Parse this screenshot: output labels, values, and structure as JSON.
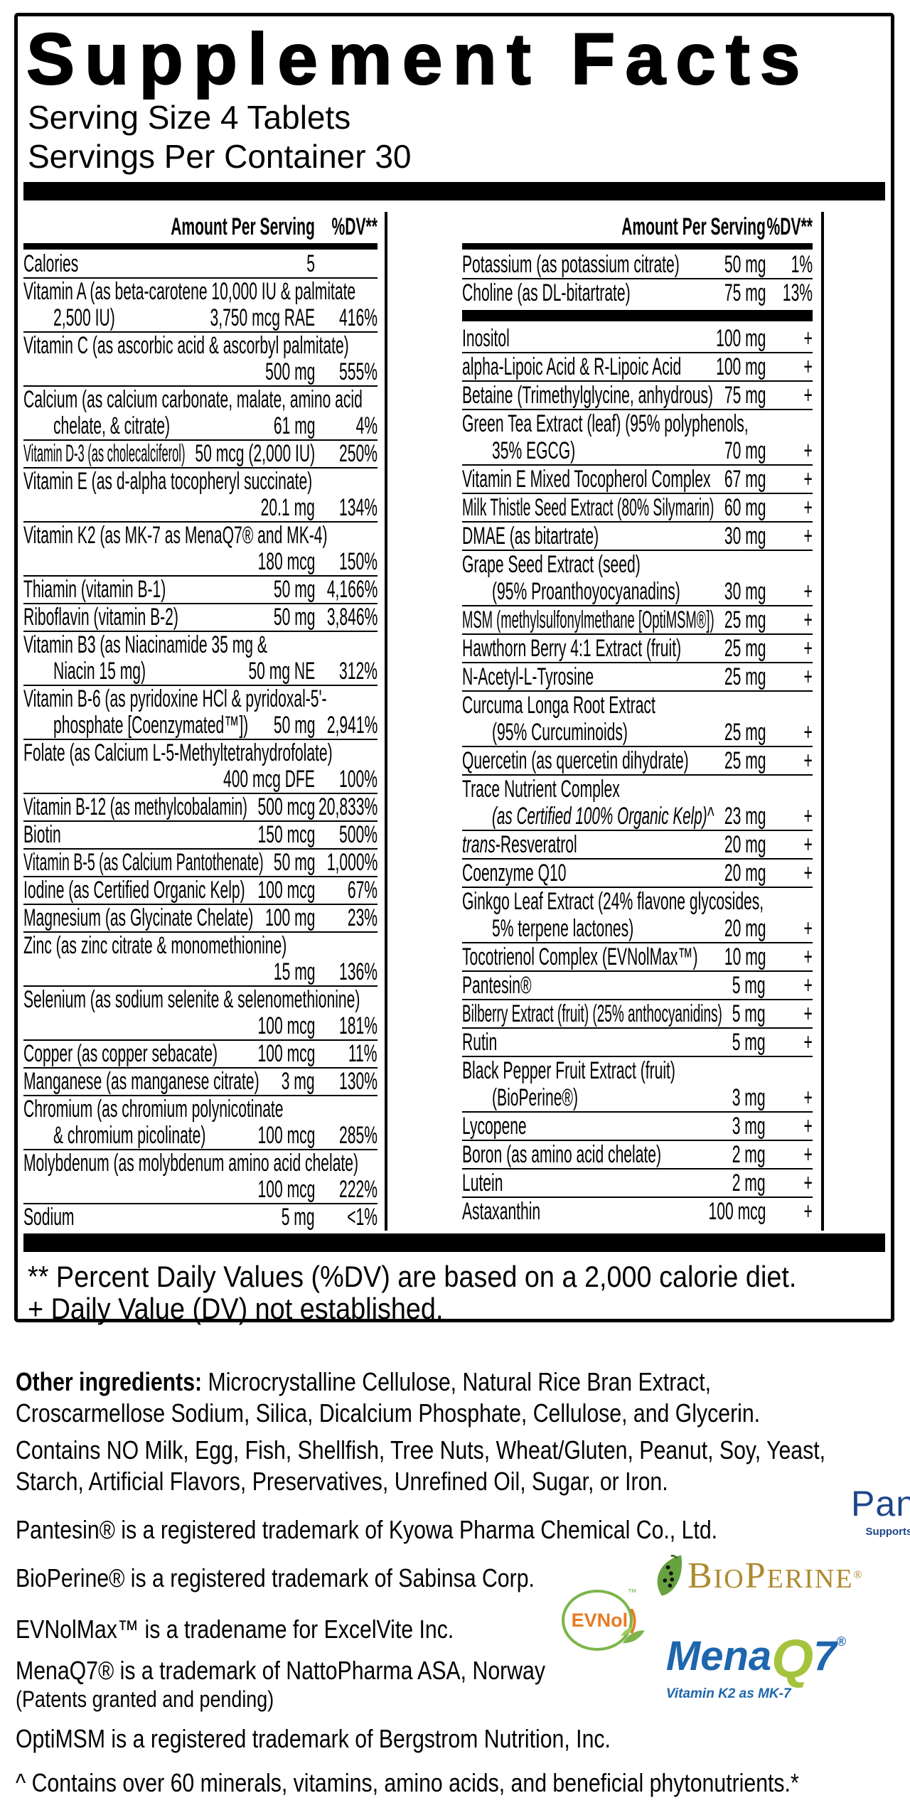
{
  "header": {
    "title": "Supplement Facts",
    "serving_size": "Serving Size 4 Tablets",
    "servings_per_container": "Servings Per Container 30"
  },
  "columns_header": {
    "amount_label": "Amount Per Serving",
    "dv_label": "%DV**"
  },
  "left_column_rows": [
    {
      "l": [
        [
          "Calories"
        ]
      ],
      "a": "5",
      "d": ""
    },
    {
      "l": [
        [
          "Vitamin A (as beta-carotene 10,000 IU & palmitate"
        ],
        [
          "2,500 IU)"
        ]
      ],
      "a": "3,750 mcg RAE",
      "d": "416%"
    },
    {
      "l": [
        [
          "Vitamin C (as ascorbic acid & ascorbyl palmitate)"
        ],
        [
          ""
        ]
      ],
      "a": "500 mg",
      "d": "555%"
    },
    {
      "l": [
        [
          "Calcium (as calcium carbonate, malate, amino acid"
        ],
        [
          "chelate, & citrate)"
        ]
      ],
      "a": "61 mg",
      "d": "4%"
    },
    {
      "l": [
        [
          "Vitamin D-3 (as cholecalciferol)"
        ]
      ],
      "a": "50 mcg (2,000 IU)",
      "d": "250%"
    },
    {
      "l": [
        [
          "Vitamin E (as d-alpha tocopheryl succinate)"
        ],
        [
          ""
        ]
      ],
      "a": "20.1 mg",
      "d": "134%"
    },
    {
      "l": [
        [
          "Vitamin K2 (as MK-7 as MenaQ7® and MK-4)"
        ],
        [
          ""
        ]
      ],
      "a": "180 mcg",
      "d": "150%"
    },
    {
      "l": [
        [
          "Thiamin (vitamin B-1)"
        ]
      ],
      "a": "50 mg",
      "d": "4,166%"
    },
    {
      "l": [
        [
          "Riboflavin (vitamin B-2)"
        ]
      ],
      "a": "50 mg",
      "d": "3,846%"
    },
    {
      "l": [
        [
          "Vitamin B3 (as Niacinamide 35 mg &"
        ],
        [
          "Niacin 15 mg)"
        ]
      ],
      "a": "50 mg NE",
      "d": "312%"
    },
    {
      "l": [
        [
          "Vitamin B-6 (as pyridoxine HCl & pyridoxal-5'-"
        ],
        [
          "phosphate [Coenzymated™])"
        ]
      ],
      "a": "50 mg",
      "d": "2,941%"
    },
    {
      "l": [
        [
          "Folate (as Calcium L-5-Methyltetrahydrofolate)"
        ],
        [
          ""
        ]
      ],
      "a": "400 mcg DFE",
      "d": "100%"
    },
    {
      "l": [
        [
          "Vitamin B-12 (as methylcobalamin)"
        ]
      ],
      "a": "500 mcg",
      "d": "20,833%"
    },
    {
      "l": [
        [
          "Biotin"
        ]
      ],
      "a": "150 mcg",
      "d": "500%"
    },
    {
      "l": [
        [
          "Vitamin B-5 (as Calcium Pantothenate)"
        ]
      ],
      "a": "50 mg",
      "d": "1,000%"
    },
    {
      "l": [
        [
          "Iodine (as Certified Organic Kelp)"
        ]
      ],
      "a": "100 mcg",
      "d": "67%"
    },
    {
      "l": [
        [
          "Magnesium (as Glycinate Chelate)"
        ]
      ],
      "a": "100 mg",
      "d": "23%"
    },
    {
      "l": [
        [
          "Zinc (as zinc citrate & monomethionine)"
        ],
        [
          ""
        ]
      ],
      "a": "15 mg",
      "d": "136%"
    },
    {
      "l": [
        [
          "Selenium (as sodium selenite & selenomethionine)"
        ],
        [
          ""
        ]
      ],
      "a": "100 mcg",
      "d": "181%"
    },
    {
      "l": [
        [
          "Copper (as copper sebacate)"
        ]
      ],
      "a": "100 mcg",
      "d": "11%"
    },
    {
      "l": [
        [
          "Manganese (as manganese citrate)"
        ]
      ],
      "a": "3 mg",
      "d": "130%"
    },
    {
      "l": [
        [
          "Chromium (as chromium polynicotinate"
        ],
        [
          "& chromium picolinate)"
        ]
      ],
      "a": "100 mcg",
      "d": "285%"
    },
    {
      "l": [
        [
          "Molybdenum (as molybdenum amino acid chelate)"
        ],
        [
          ""
        ]
      ],
      "a": "100 mcg",
      "d": "222%"
    },
    {
      "l": [
        [
          "Sodium"
        ]
      ],
      "a": "5 mg",
      "d": "<1%"
    }
  ],
  "right_column_rows": [
    {
      "l": [
        [
          "Potassium (as potassium citrate)"
        ]
      ],
      "a": "50 mg",
      "d": "1%"
    },
    {
      "l": [
        [
          "Choline (as DL-bitartrate)"
        ]
      ],
      "a": "75 mg",
      "d": "13%",
      "barAfter": true
    },
    {
      "l": [
        [
          "Inositol"
        ]
      ],
      "a": "100 mg",
      "d": "+"
    },
    {
      "l": [
        [
          "alpha-Lipoic Acid & R-Lipoic Acid"
        ]
      ],
      "a": "100 mg",
      "d": "+"
    },
    {
      "l": [
        [
          "Betaine (Trimethylglycine, anhydrous)"
        ]
      ],
      "a": "75 mg",
      "d": "+"
    },
    {
      "l": [
        [
          "Green Tea Extract (leaf) (95% polyphenols,"
        ],
        [
          "35% EGCG)"
        ]
      ],
      "a": "70 mg",
      "d": "+"
    },
    {
      "l": [
        [
          "Vitamin E Mixed Tocopherol Complex"
        ]
      ],
      "a": "67 mg",
      "d": "+"
    },
    {
      "l": [
        [
          "Milk Thistle Seed Extract (80% Silymarin)"
        ]
      ],
      "a": "60 mg",
      "d": "+"
    },
    {
      "l": [
        [
          "DMAE (as bitartrate)"
        ]
      ],
      "a": "30 mg",
      "d": "+"
    },
    {
      "l": [
        [
          "Grape Seed Extract (seed)"
        ],
        [
          "(95% Proanthoyocyanadins)"
        ]
      ],
      "a": "30 mg",
      "d": "+"
    },
    {
      "l": [
        [
          "MSM (methylsulfonylmethane [OptiMSM®])"
        ]
      ],
      "a": "25 mg",
      "d": "+"
    },
    {
      "l": [
        [
          "Hawthorn Berry 4:1 Extract (fruit)"
        ]
      ],
      "a": "25 mg",
      "d": "+"
    },
    {
      "l": [
        [
          "N-Acetyl-L-Tyrosine"
        ]
      ],
      "a": "25 mg",
      "d": "+"
    },
    {
      "l": [
        [
          "Curcuma Longa Root Extract"
        ],
        [
          "(95% Curcuminoids)"
        ]
      ],
      "a": "25 mg",
      "d": "+"
    },
    {
      "l": [
        [
          "Quercetin (as quercetin dihydrate)"
        ]
      ],
      "a": "25 mg",
      "d": "+"
    },
    {
      "l": [
        [
          "Trace Nutrient Complex"
        ],
        [
          {
            "t": "(as Certified 100% Organic Kelp)^",
            "i": true
          }
        ]
      ],
      "a": "23 mg",
      "d": "+"
    },
    {
      "l": [
        [
          {
            "t": "trans",
            "i": true
          },
          {
            "t": "-Resveratrol"
          }
        ]
      ],
      "a": "20 mg",
      "d": "+"
    },
    {
      "l": [
        [
          "Coenzyme Q10"
        ]
      ],
      "a": "20 mg",
      "d": "+"
    },
    {
      "l": [
        [
          "Ginkgo Leaf Extract (24% flavone glycosides,"
        ],
        [
          "5% terpene lactones)"
        ]
      ],
      "a": "20 mg",
      "d": "+"
    },
    {
      "l": [
        [
          "Tocotrienol Complex (EVNolMax™)"
        ]
      ],
      "a": "10 mg",
      "d": "+"
    },
    {
      "l": [
        [
          "Pantesin®"
        ]
      ],
      "a": "5 mg",
      "d": "+"
    },
    {
      "l": [
        [
          "Bilberry Extract (fruit) (25% anthocyanidins)"
        ]
      ],
      "a": "5 mg",
      "d": "+"
    },
    {
      "l": [
        [
          "Rutin"
        ]
      ],
      "a": "5 mg",
      "d": "+"
    },
    {
      "l": [
        [
          "Black Pepper Fruit Extract (fruit)"
        ],
        [
          "(BioPerine®)"
        ]
      ],
      "a": "3 mg",
      "d": "+"
    },
    {
      "l": [
        [
          "Lycopene"
        ]
      ],
      "a": "3 mg",
      "d": "+"
    },
    {
      "l": [
        [
          "Boron (as amino acid chelate)"
        ]
      ],
      "a": "2 mg",
      "d": "+"
    },
    {
      "l": [
        [
          "Lutein"
        ]
      ],
      "a": "2 mg",
      "d": "+"
    },
    {
      "l": [
        [
          "Astaxanthin"
        ]
      ],
      "a": "100 mcg",
      "d": "+"
    }
  ],
  "footnotes": {
    "dv": "** Percent Daily Values (%DV) are based on a 2,000 calorie diet.",
    "plus": "+ Daily Value (DV) not established."
  },
  "bottom": {
    "oi_label": "Other ingredients:",
    "oi_line1_rest": " Microcrystalline Cellulose, Natural Rice Bran Extract,",
    "oi_line2": "Croscarmellose Sodium, Silica, Dicalcium Phosphate, Cellulose, and Glycerin.",
    "contains_line1": "Contains NO Milk, Egg, Fish, Shellfish, Tree Nuts, Wheat/Gluten, Peanut, Soy, Yeast,",
    "contains_line2": "Starch, Artificial Flavors, Preservatives, Unrefined Oil, Sugar, or Iron.",
    "tm_pantesin": "Pantesin® is a registered trademark of Kyowa Pharma Chemical Co., Ltd.",
    "tm_bioperine": "BioPerine® is a registered trademark of Sabinsa Corp.",
    "tm_evnol": "EVNolMax™ is a tradename for ExcelVite Inc.",
    "tm_menaq7": "MenaQ7® is a trademark of NattoPharma ASA, Norway",
    "menaq7_patents": "(Patents granted and pending)",
    "tm_optimsm": "OptiMSM is a registered trademark of Bergstrom Nutrition, Inc.",
    "kelp_note": "^ Contains over 60 minerals, vitamins, amino acids, and beneficial phytonutrients.*",
    "logos": {
      "pantesin_text": "Pantesin",
      "pantesin_tagline": "Supports a healthy heart",
      "bioperine_b": "B",
      "bioperine_io": "IO",
      "bioperine_p": "P",
      "bioperine_erine": "ERINE",
      "evnol_text": "EVNol",
      "menaq7_mena": "Mena",
      "menaq7_q": "Q",
      "menaq7_7": "7",
      "menaq7_tagline": "Vitamin K2 as MK-7",
      "reg": "®",
      "tm": "™"
    },
    "colors": {
      "pantesin_blue": "#1c4689",
      "pantesin_yellow": "#f2c319",
      "bioperine_gold": "#ad8a2e",
      "bioperine_green": "#66a23f",
      "evnol_orange": "#e87b22",
      "evnol_green": "#7cb54a",
      "menaq7_blue": "#1e66ad",
      "menaq7_green": "#a4c43e"
    }
  }
}
